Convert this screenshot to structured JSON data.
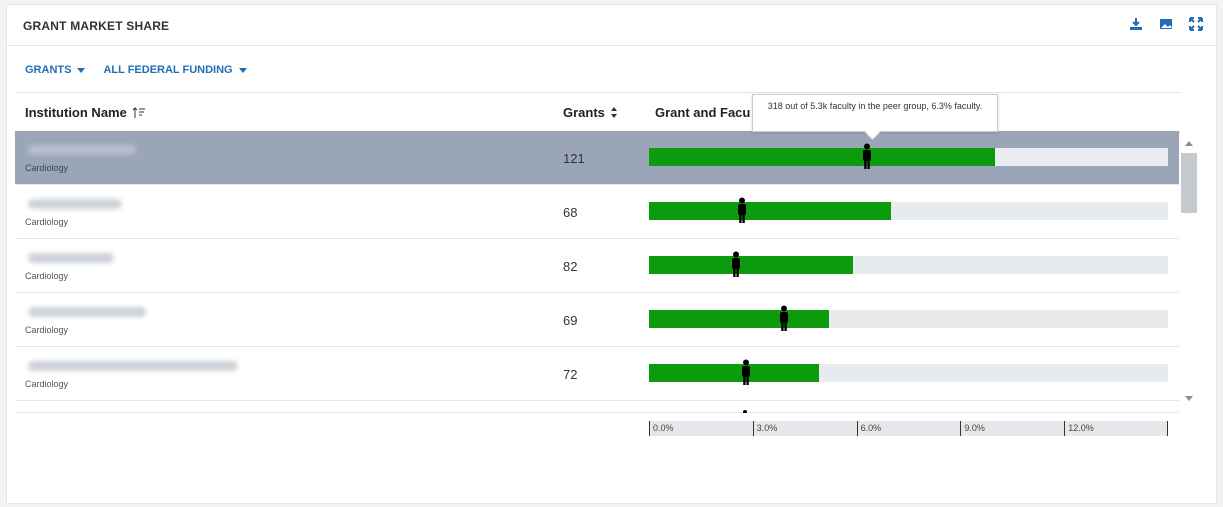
{
  "header": {
    "title": "GRANT MARKET SHARE",
    "icons": [
      "download-icon",
      "image-icon",
      "expand-icon"
    ]
  },
  "filters": [
    {
      "label": "GRANTS"
    },
    {
      "label": "ALL FEDERAL FUNDING"
    }
  ],
  "columns": {
    "name": "Institution Name",
    "grants": "Grants",
    "bar": "Grant and Facu"
  },
  "tooltip": {
    "text": "318 out of 5.3k faculty in the peer group, 6.3% faculty."
  },
  "rows": [
    {
      "dept": "Cardiology",
      "grants": "121",
      "selected": true,
      "grant_pct": 10.0,
      "faculty_pct": 6.3
    },
    {
      "dept": "Cardiology",
      "grants": "68",
      "grant_pct": 7.0,
      "faculty_pct": 2.7
    },
    {
      "dept": "Cardiology",
      "grants": "82",
      "grant_pct": 5.9,
      "faculty_pct": 2.5
    },
    {
      "dept": "Cardiology",
      "grants": "69",
      "grant_pct": 5.2,
      "faculty_pct": 3.9
    },
    {
      "dept": "Cardiology",
      "grants": "72",
      "grant_pct": 4.9,
      "faculty_pct": 2.8
    }
  ],
  "axis": {
    "ticks": [
      "0.0%",
      "3.0%",
      "6.0%",
      "9.0%",
      "12.0%"
    ],
    "max_pct": 15
  },
  "colors": {
    "bar": "#0c9b0c",
    "selected_row": "#9aa5b7",
    "accent": "#1f6eb5"
  }
}
